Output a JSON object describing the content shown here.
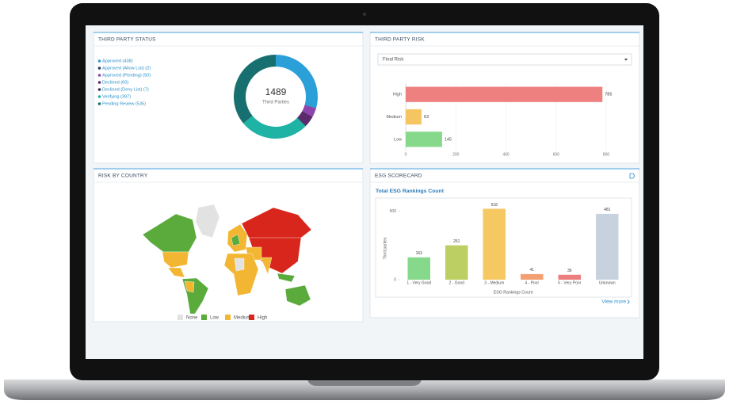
{
  "panels": [
    {
      "title": "THIRD PARTY STATUS"
    },
    {
      "title": "THIRD PARTY RISK"
    },
    {
      "title": "RISK BY COUNTRY"
    },
    {
      "title": "ESG SCORECARD"
    }
  ],
  "risk_filter": "Final Risk",
  "view_more": "View more",
  "map_legend": [
    {
      "name": "None",
      "color": "#e2e2e2"
    },
    {
      "name": "Low",
      "color": "#5aab3c"
    },
    {
      "name": "Medium",
      "color": "#f2b632"
    },
    {
      "name": "High",
      "color": "#d9261c"
    }
  ],
  "chart_data": [
    {
      "type": "donut",
      "categories": [
        "Approved (438)",
        "Approved (Allow List) (2)",
        "Approved (Pending) (50)",
        "Declined (60)",
        "Declined (Deny List) (7)",
        "Verifying (397)",
        "Pending Review (535)"
      ],
      "values": [
        438,
        2,
        50,
        60,
        7,
        397,
        535
      ],
      "colors": [
        "#2a9fd8",
        "#2f3b63",
        "#8e44ad",
        "#5b2a6e",
        "#3d2a55",
        "#1fb3a5",
        "#17706f"
      ],
      "center_value": 1489,
      "center_label": "Third Parties"
    },
    {
      "type": "hbar",
      "categories": [
        "High",
        "Medium",
        "Low"
      ],
      "values": [
        785,
        63,
        145
      ],
      "colors": [
        "#ee8080",
        "#f5c562",
        "#86d88a"
      ],
      "xlim": [
        0,
        800
      ],
      "xticks": [
        0,
        200,
        400,
        600,
        800
      ],
      "grid": true
    },
    {
      "type": "bar",
      "title": "Total ESG Rankings Count",
      "categories": [
        "1 - Very Good",
        "2 - Good",
        "3 - Medium",
        "4 - Poor",
        "5 - Very Poor",
        "Unknown"
      ],
      "values": [
        163,
        251,
        518,
        41,
        36,
        481
      ],
      "colors": [
        "#86d88a",
        "#bccf62",
        "#f5c862",
        "#f2a072",
        "#ec7e7e",
        "#c8d2df"
      ],
      "ylim": [
        0,
        550
      ],
      "yticks": [
        0,
        500
      ],
      "xlabel": "ESG Rankings Count",
      "ylabel": "Third parties"
    }
  ]
}
